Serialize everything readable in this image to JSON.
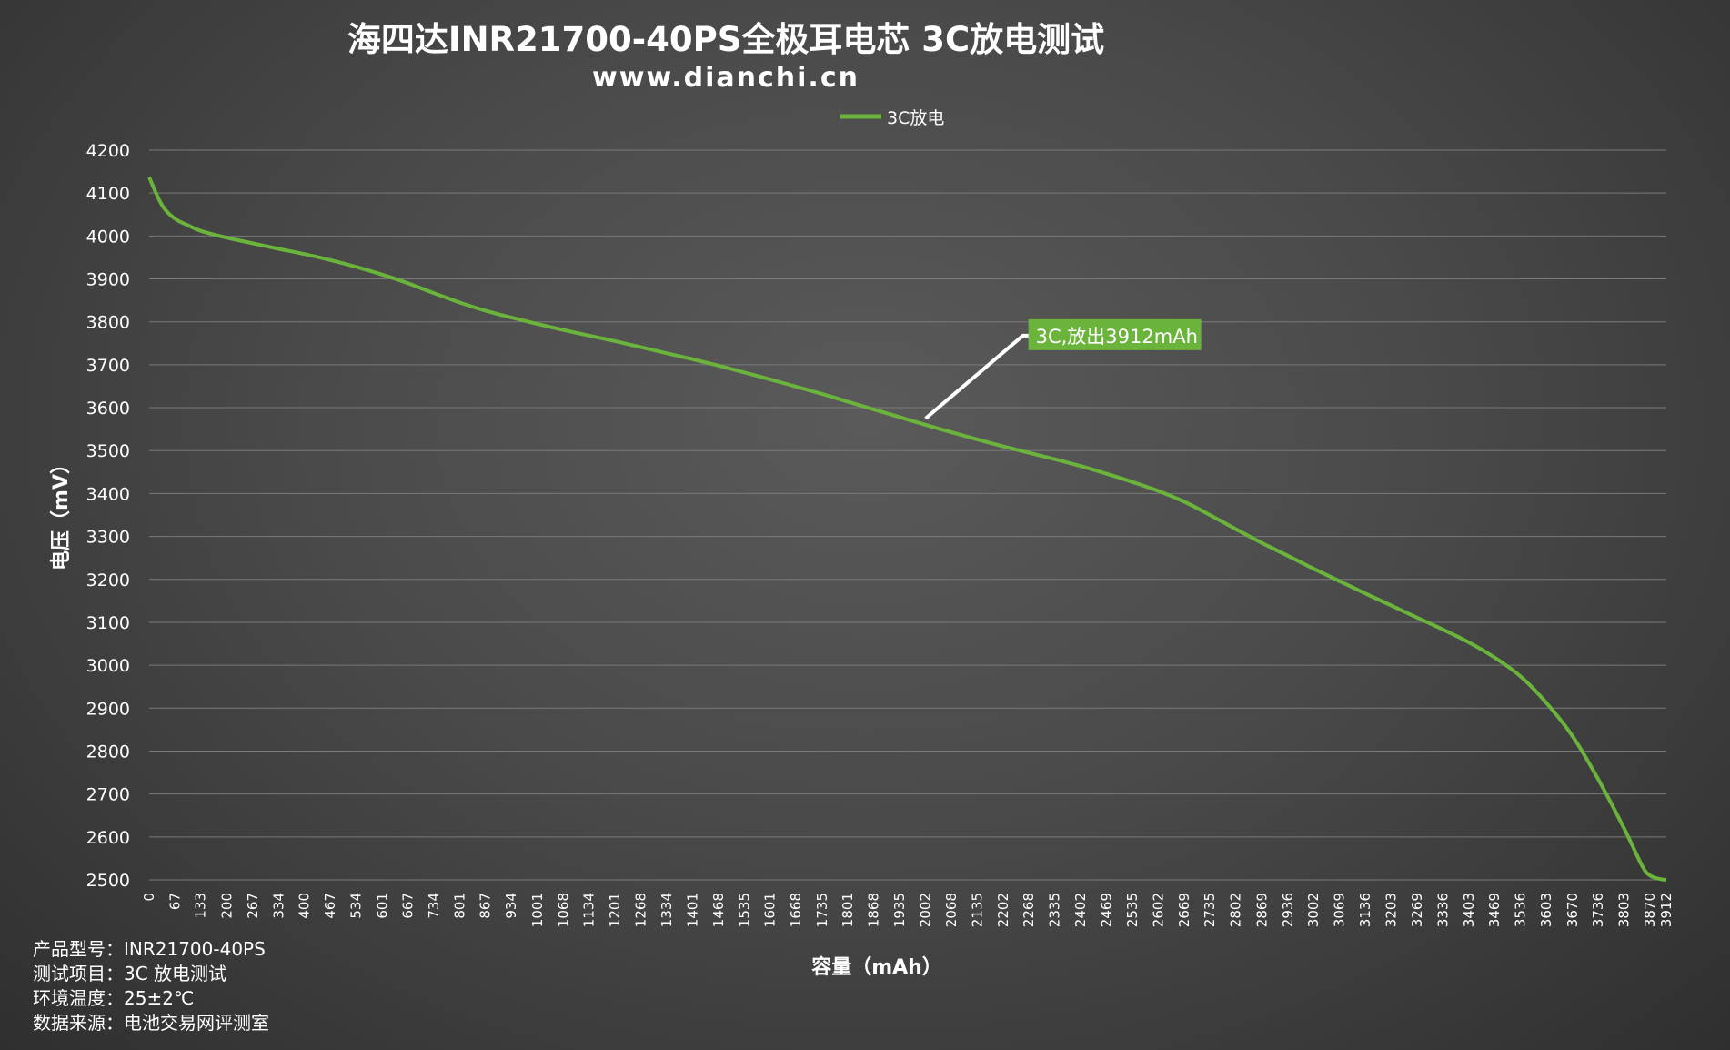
{
  "title": "海四达INR21700-40PS全极耳电芯 3C放电测试",
  "subtitle": "www.dianchi.cn",
  "colors": {
    "series": "#6ab43c",
    "callout_bg": "#6ab43c",
    "callout_line": "#ffffff",
    "grid": "#7a7a7a"
  },
  "chart_data": {
    "type": "line",
    "xlabel": "容量（mAh）",
    "ylabel": "电压（mV）",
    "ylim": [
      2500,
      4200
    ],
    "yticks": [
      "4200",
      "4100",
      "4000",
      "3900",
      "3800",
      "3700",
      "3600",
      "3500",
      "3400",
      "3300",
      "3200",
      "3100",
      "3000",
      "2900",
      "2800",
      "2700",
      "2600",
      "2500"
    ],
    "xticks": [
      "0",
      "67",
      "133",
      "200",
      "267",
      "334",
      "400",
      "467",
      "534",
      "601",
      "667",
      "734",
      "801",
      "867",
      "934",
      "1001",
      "1068",
      "1134",
      "1201",
      "1268",
      "1334",
      "1401",
      "1468",
      "1535",
      "1601",
      "1668",
      "1735",
      "1801",
      "1868",
      "1935",
      "2002",
      "2068",
      "2135",
      "2202",
      "2268",
      "2335",
      "2402",
      "2469",
      "2535",
      "2602",
      "2669",
      "2735",
      "2802",
      "2869",
      "2936",
      "3002",
      "3069",
      "3136",
      "3203",
      "3269",
      "3336",
      "3403",
      "3469",
      "3536",
      "3603",
      "3670",
      "3736",
      "3803",
      "3870",
      "3912"
    ],
    "grid": true,
    "legend_position": "top-center",
    "series": [
      {
        "name": "3C放电",
        "x": [
          0,
          33,
          67,
          100,
          133,
          200,
          267,
          334,
          400,
          467,
          534,
          601,
          667,
          734,
          801,
          867,
          934,
          1001,
          1068,
          1134,
          1201,
          1268,
          1334,
          1401,
          1468,
          1535,
          1601,
          1668,
          1735,
          1801,
          1868,
          1935,
          2002,
          2068,
          2135,
          2202,
          2268,
          2335,
          2402,
          2469,
          2535,
          2602,
          2669,
          2735,
          2802,
          2869,
          2936,
          3002,
          3069,
          3136,
          3203,
          3269,
          3336,
          3403,
          3469,
          3536,
          3603,
          3670,
          3736,
          3803,
          3850,
          3870,
          3895,
          3912
        ],
        "values": [
          4137,
          4072,
          4040,
          4025,
          4012,
          3996,
          3983,
          3970,
          3958,
          3944,
          3928,
          3910,
          3890,
          3867,
          3845,
          3826,
          3810,
          3795,
          3781,
          3768,
          3755,
          3741,
          3727,
          3713,
          3698,
          3682,
          3666,
          3649,
          3632,
          3614,
          3596,
          3578,
          3560,
          3543,
          3526,
          3510,
          3495,
          3480,
          3464,
          3446,
          3427,
          3406,
          3381,
          3350,
          3317,
          3285,
          3255,
          3225,
          3196,
          3167,
          3139,
          3111,
          3083,
          3053,
          3018,
          2974,
          2912,
          2835,
          2735,
          2620,
          2532,
          2510,
          2502,
          2500
        ]
      }
    ],
    "annotation": {
      "text": "3C,放出3912mAh",
      "x": 2002,
      "y": 3575
    }
  },
  "info": [
    {
      "label": "产品型号：",
      "value": "INR21700-40PS"
    },
    {
      "label": "测试项目：",
      "value": "3C 放电测试"
    },
    {
      "label": "环境温度：",
      "value": "25±2℃"
    },
    {
      "label": "数据来源：",
      "value": "电池交易网评测室"
    }
  ]
}
